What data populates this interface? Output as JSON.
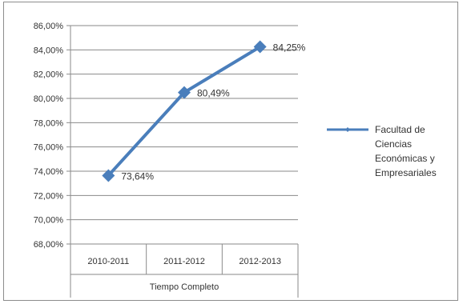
{
  "chart_data": {
    "type": "line",
    "categories": [
      "2010-2011",
      "2011-2012",
      "2012-2013"
    ],
    "category_group_label": "Tiempo Completo",
    "series": [
      {
        "name": "Facultad de Ciencias Económicas y Empresariales",
        "legend_lines": [
          "Facultad de",
          "Ciencias",
          "Económicas y",
          "Empresariales"
        ],
        "values": [
          73.64,
          80.49,
          84.25
        ],
        "value_labels": [
          "73,64%",
          "80,49%",
          "84,25%"
        ],
        "color": "#4a7ebb"
      }
    ],
    "y_ticks": [
      "68,00%",
      "70,00%",
      "72,00%",
      "74,00%",
      "76,00%",
      "78,00%",
      "80,00%",
      "82,00%",
      "84,00%",
      "86,00%"
    ],
    "ylim": [
      68,
      86
    ],
    "y_step": 2,
    "grid": true,
    "legend_position": "right"
  }
}
